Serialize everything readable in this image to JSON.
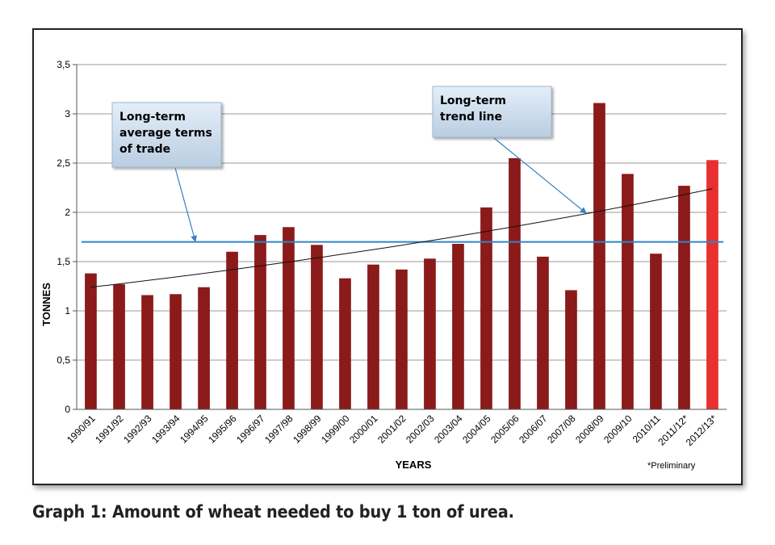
{
  "caption": "Graph 1: Amount of wheat needed to buy 1 ton of urea.",
  "chart_data": {
    "type": "bar",
    "title": "",
    "xlabel": "YEARS",
    "ylabel": "TONNES",
    "ylim": [
      0,
      3.5
    ],
    "ytick_labels": [
      "0",
      "0,5",
      "1",
      "1,5",
      "2",
      "2,5",
      "3",
      "3,5"
    ],
    "grid": "horizontal",
    "categories": [
      "1990/91",
      "1991/92",
      "1992/93",
      "1993/94",
      "1994/95",
      "1995/96",
      "1996/97",
      "1997/98",
      "1998/99",
      "1999/00",
      "2000/01",
      "2001/02",
      "2002/03",
      "2003/04",
      "2004/05",
      "2005/06",
      "2006/07",
      "2007/08",
      "2008/09",
      "2009/10",
      "2010/11",
      "2011/12*",
      "2012/13*"
    ],
    "values": [
      1.38,
      1.27,
      1.16,
      1.17,
      1.24,
      1.6,
      1.77,
      1.85,
      1.67,
      1.33,
      1.47,
      1.42,
      1.53,
      1.68,
      2.05,
      2.55,
      1.55,
      1.21,
      3.11,
      2.39,
      1.58,
      2.27,
      2.53
    ],
    "bar_color": "#8b1a1a",
    "highlight_index": 22,
    "highlight_color": "#e8302f",
    "average_line": {
      "value": 1.7,
      "color": "#2e86c8"
    },
    "trend_line": {
      "start": 1.24,
      "end": 2.24
    },
    "annotations": {
      "average": [
        "Long-term",
        "average terms",
        "of trade"
      ],
      "trend": [
        "Long-term",
        "trend line"
      ]
    },
    "footnote": "*Preliminary"
  }
}
